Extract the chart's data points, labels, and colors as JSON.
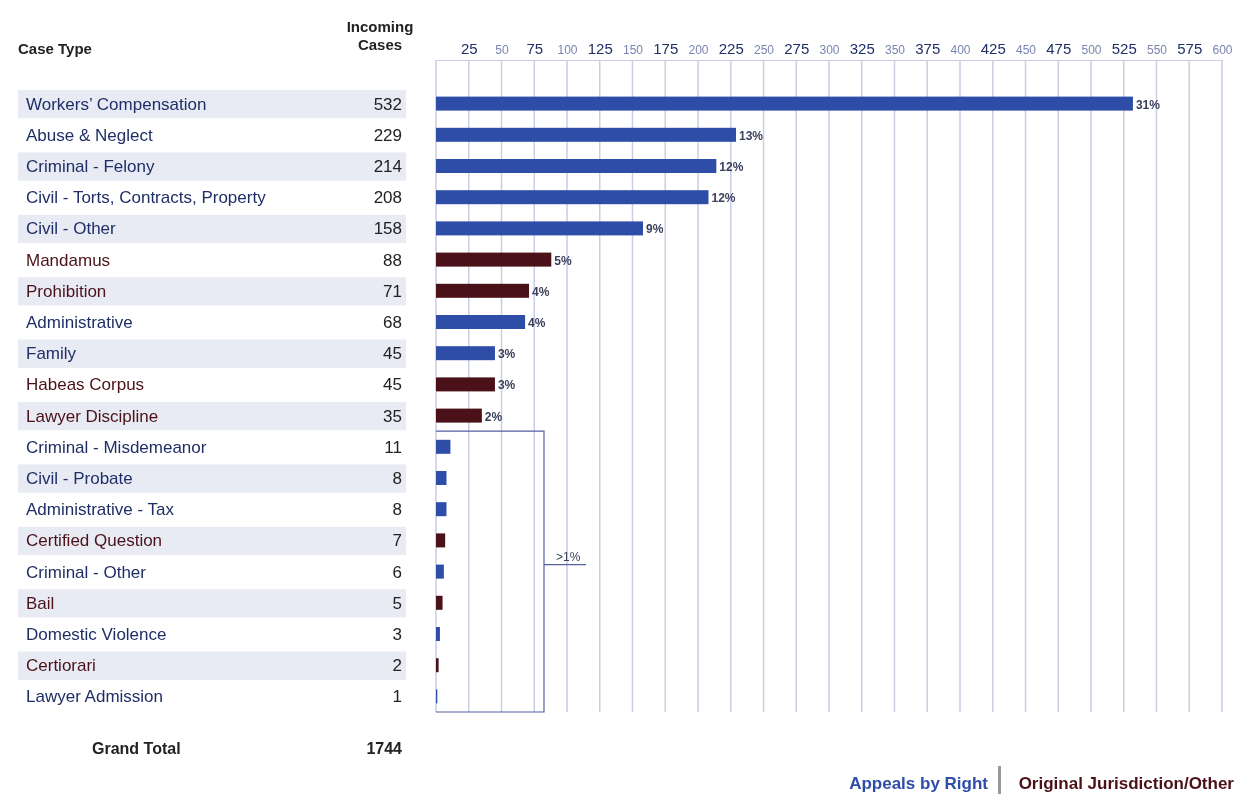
{
  "chart_data": {
    "type": "bar",
    "orientation": "horizontal",
    "ylabel": "Case Type",
    "categories": [
      "Workers’ Compensation",
      "Abuse & Neglect",
      "Criminal - Felony",
      "Civil - Torts, Contracts, Property",
      "Civil - Other",
      "Mandamus",
      "Prohibition",
      "Administrative",
      "Family",
      "Habeas Corpus",
      "Lawyer Discipline",
      "Criminal - Misdemeanor",
      "Civil - Probate",
      "Administrative - Tax",
      "Certified Question",
      "Criminal - Other",
      "Bail",
      "Domestic Violence",
      "Certiorari",
      "Lawyer Admission"
    ],
    "series": [
      {
        "name": "Appeals by Right",
        "color": "#2e4da7",
        "axis": "x2",
        "values": [
          532,
          229,
          214,
          208,
          158,
          null,
          null,
          68,
          45,
          null,
          null,
          11,
          8,
          8,
          null,
          6,
          null,
          3,
          null,
          1
        ]
      },
      {
        "name": "Original Jurisdiction/Other",
        "color": "#4a1218",
        "axis": "x2",
        "values": [
          null,
          null,
          null,
          null,
          null,
          88,
          71,
          null,
          null,
          45,
          35,
          null,
          null,
          null,
          7,
          null,
          5,
          null,
          2,
          null
        ]
      }
    ],
    "data_labels": true,
    "x2lim": [
      0,
      600
    ],
    "x2ticks": [
      25,
      50,
      75,
      100,
      125,
      150,
      175,
      200,
      225,
      250,
      275,
      300,
      325,
      350,
      375,
      400,
      425,
      450,
      475,
      500,
      525,
      550,
      575,
      600
    ],
    "grid": "x",
    "legend": "bottom right",
    "annotations": [
      "Incoming Cases",
      "Grand Total",
      "1744",
      ">1%",
      {
        "text": "31%",
        "x": 532,
        "y": "Workers’ Compensation"
      },
      {
        "text": "13%",
        "x": 229,
        "y": "Abuse & Neglect"
      },
      {
        "text": "12%",
        "x": 214,
        "y": "Criminal - Felony"
      },
      {
        "text": "12%",
        "x": 208,
        "y": "Civil - Torts, Contracts, Property"
      },
      {
        "text": "9%",
        "x": 158,
        "y": "Civil - Other"
      },
      {
        "text": "5%",
        "x": 88,
        "y": "Mandamus"
      },
      {
        "text": "4%",
        "x": 71,
        "y": "Prohibition"
      },
      {
        "text": "4%",
        "x": 68,
        "y": "Administrative"
      },
      {
        "text": "3%",
        "x": 45,
        "y": "Family"
      },
      {
        "text": "3%",
        "x": 45,
        "y": "Habeas Corpus"
      },
      {
        "text": "2%",
        "x": 35,
        "y": "Lawyer Discipline"
      }
    ]
  }
}
